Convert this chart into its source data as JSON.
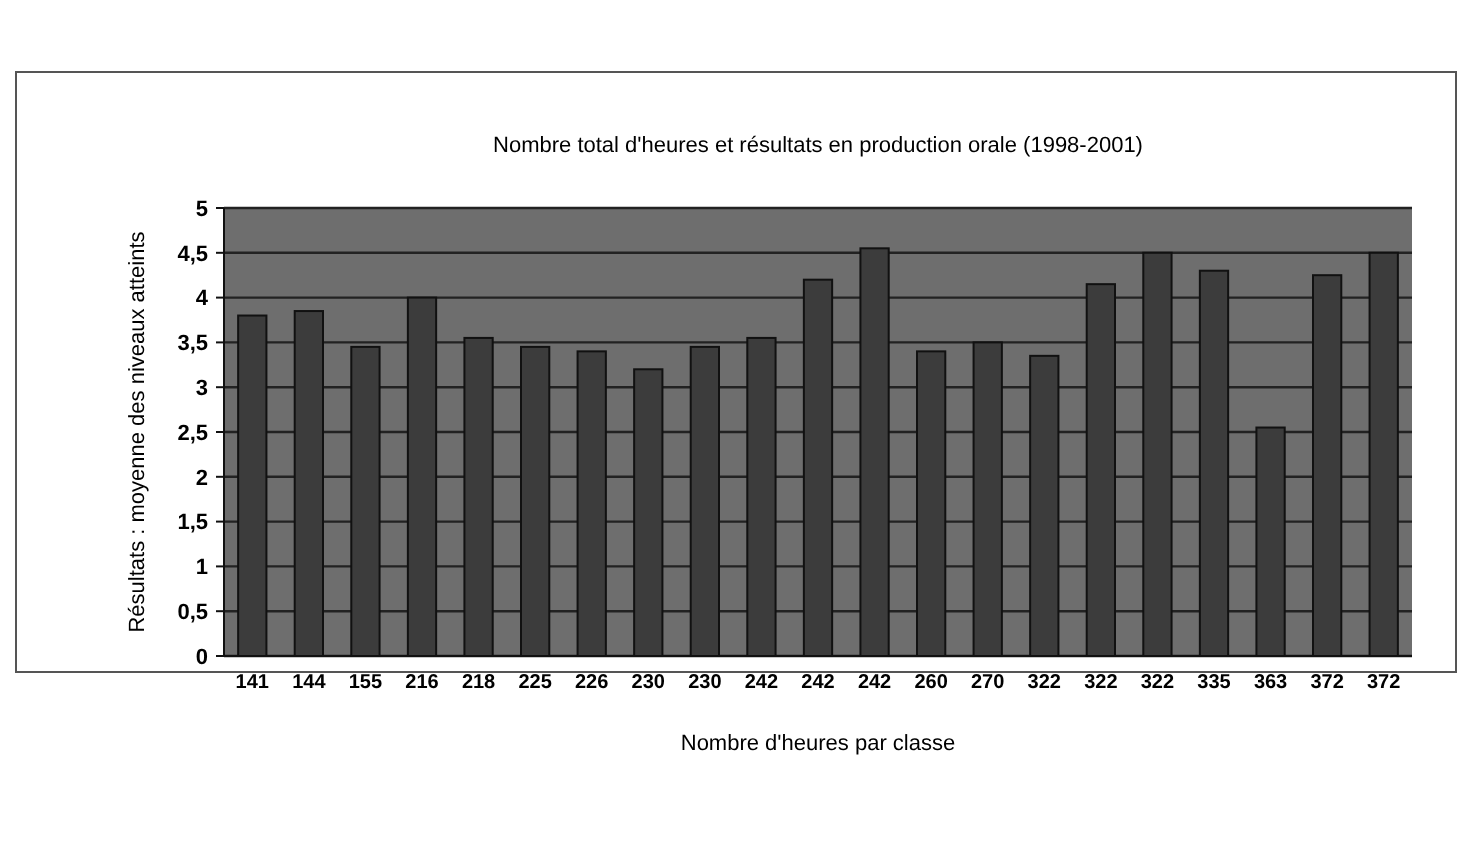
{
  "chart_data": {
    "type": "bar",
    "title": "Nombre total d'heures et résultats en production orale (1998-2001)",
    "xlabel": "Nombre d'heures par classe",
    "ylabel": "Résultats : moyenne des niveaux atteints",
    "categories": [
      "141",
      "144",
      "155",
      "216",
      "218",
      "225",
      "226",
      "230",
      "230",
      "242",
      "242",
      "242",
      "260",
      "270",
      "322",
      "322",
      "322",
      "335",
      "363",
      "372",
      "372"
    ],
    "values": [
      3.8,
      3.85,
      3.45,
      4.0,
      3.55,
      3.45,
      3.4,
      3.2,
      3.45,
      3.55,
      4.2,
      4.55,
      3.4,
      3.5,
      3.35,
      4.15,
      4.5,
      4.3,
      2.55,
      4.25,
      4.5
    ],
    "color": "#3c3c3c",
    "ylim": [
      0,
      5
    ],
    "yticks": [
      0,
      {
        "value": 0.5,
        "label": "0,5"
      },
      1,
      {
        "value": 1.5,
        "label": "1,5"
      },
      2,
      {
        "value": 2.5,
        "label": "2,5"
      },
      3,
      {
        "value": 3.5,
        "label": "3,5"
      },
      4,
      {
        "value": 4.5,
        "label": "4,5"
      },
      5
    ],
    "grid": "y"
  }
}
